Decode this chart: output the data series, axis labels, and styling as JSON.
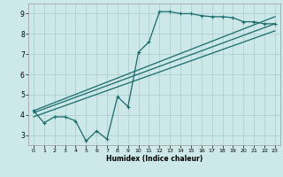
{
  "title": "",
  "xlabel": "Humidex (Indice chaleur)",
  "bg_color": "#cce8e8",
  "grid_color": "#aacccc",
  "line_color": "#1a6b6b",
  "xlim": [
    -0.5,
    23.5
  ],
  "ylim": [
    2.5,
    9.5
  ],
  "xticks": [
    0,
    1,
    2,
    3,
    4,
    5,
    6,
    7,
    8,
    9,
    10,
    11,
    12,
    13,
    14,
    15,
    16,
    17,
    18,
    19,
    20,
    21,
    22,
    23
  ],
  "yticks": [
    3,
    4,
    5,
    6,
    7,
    8,
    9
  ],
  "series1_x": [
    0,
    1,
    2,
    3,
    4,
    5,
    6,
    7,
    8,
    9,
    10,
    11,
    12,
    13,
    14,
    15,
    16,
    17,
    18,
    19,
    20,
    21,
    22,
    23
  ],
  "series1_y": [
    4.2,
    3.6,
    3.9,
    3.9,
    3.7,
    2.7,
    3.2,
    2.8,
    4.9,
    4.4,
    7.1,
    7.6,
    9.1,
    9.1,
    9.0,
    9.0,
    8.9,
    8.85,
    8.85,
    8.8,
    8.6,
    8.6,
    8.5,
    8.5
  ],
  "series2_x": [
    0,
    23
  ],
  "series2_y": [
    4.2,
    8.85
  ],
  "series3_x": [
    0,
    23
  ],
  "series3_y": [
    4.1,
    8.5
  ],
  "series4_x": [
    0,
    23
  ],
  "series4_y": [
    3.9,
    8.15
  ]
}
